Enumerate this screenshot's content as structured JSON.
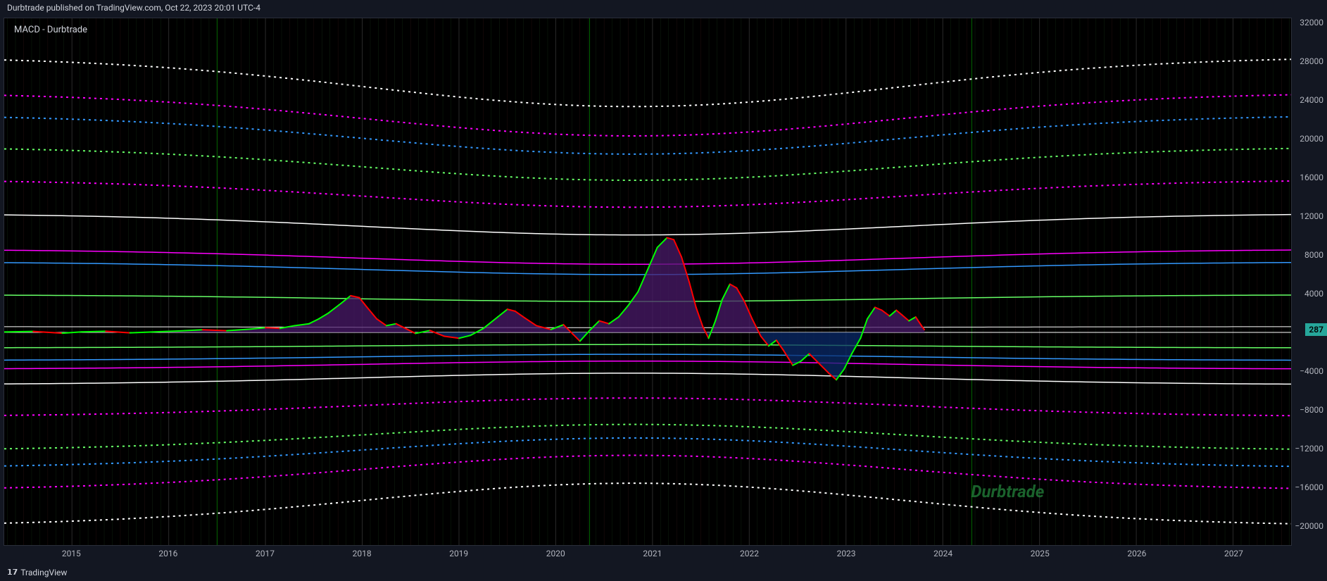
{
  "header": {
    "attribution": "Durbtrade published on TradingView.com, Oct 22, 2023 20:01 UTC-4"
  },
  "indicator": {
    "label": "MACD - Durbtrade"
  },
  "footer": {
    "brand": "TradingView"
  },
  "watermark": {
    "text": "Durbtrade",
    "color": "#268c3f"
  },
  "price_tag": {
    "value": "287",
    "bg": "#26a69a"
  },
  "chart": {
    "type": "macd-oscillator",
    "background": "#000000",
    "panel_border": "#2a2e39",
    "x": {
      "min": 2014.3,
      "max": 2027.6,
      "ticks": [
        2015,
        2016,
        2017,
        2018,
        2019,
        2020,
        2021,
        2022,
        2023,
        2024,
        2025,
        2026,
        2027
      ],
      "label_color": "#b2b5be"
    },
    "y": {
      "min": -22000,
      "max": 32500,
      "ticks": [
        32000,
        28000,
        24000,
        20000,
        16000,
        12000,
        8000,
        4000,
        0,
        -4000,
        -8000,
        -12000,
        -16000,
        -20000
      ],
      "label_color": "#b2b5be",
      "format": "signed"
    },
    "vgrid": {
      "years": [
        2015,
        2016,
        2017,
        2018,
        2019,
        2020,
        2021,
        2022,
        2023,
        2024,
        2025,
        2026,
        2027
      ],
      "halving_years": [
        2016.5,
        2020.35,
        2024.3
      ],
      "fine_color": "#1a3a1a",
      "fine_color2": "#3a1a1a",
      "year_color": "#555555",
      "halving_color": "#00aa00"
    },
    "bands": [
      {
        "level": 28500,
        "mirror": -20000,
        "color": "#ffffff",
        "dash": "3,5",
        "width": 2
      },
      {
        "level": 24800,
        "mirror": -16300,
        "color": "#ff00ff",
        "dash": "3,5",
        "width": 2
      },
      {
        "level": 22500,
        "mirror": -14000,
        "color": "#3399ff",
        "dash": "3,5",
        "width": 2
      },
      {
        "level": 19200,
        "mirror": -12200,
        "color": "#66ff66",
        "dash": "3,5",
        "width": 2
      },
      {
        "level": 15800,
        "mirror": -8700,
        "color": "#ff00ff",
        "dash": "3,5",
        "width": 2
      },
      {
        "level": 12300,
        "mirror": -5400,
        "color": "#ffffff",
        "dash": "none",
        "width": 1.5
      },
      {
        "level": 8600,
        "mirror": -3800,
        "color": "#ff00ff",
        "dash": "none",
        "width": 1.5
      },
      {
        "level": 7300,
        "mirror": -2900,
        "color": "#3399ff",
        "dash": "none",
        "width": 1.5
      },
      {
        "level": 3900,
        "mirror": -1600,
        "color": "#66ff66",
        "dash": "none",
        "width": 1.5
      },
      {
        "level": 600,
        "mirror": 0,
        "color": "#ffffff",
        "dash": "none",
        "width": 1
      }
    ],
    "band_curve": {
      "dip_center_year": 2020.8,
      "dip_depth_frac_pos": 0.18,
      "dip_depth_frac_neg": 0.22,
      "dip_width_years": 5.5
    },
    "macd": {
      "up_color": "#00ff00",
      "down_color": "#ff0000",
      "line_width": 2,
      "hist_pos_fill": "#4a1a6a",
      "hist_neg_fill": "#0a2a6a",
      "hist_opacity": 0.75,
      "points": [
        [
          2014.3,
          50
        ],
        [
          2014.6,
          100
        ],
        [
          2014.9,
          -80
        ],
        [
          2015.1,
          60
        ],
        [
          2015.35,
          120
        ],
        [
          2015.6,
          -40
        ],
        [
          2015.9,
          80
        ],
        [
          2016.1,
          150
        ],
        [
          2016.35,
          280
        ],
        [
          2016.6,
          180
        ],
        [
          2016.85,
          350
        ],
        [
          2017.0,
          500
        ],
        [
          2017.15,
          420
        ],
        [
          2017.3,
          700
        ],
        [
          2017.45,
          900
        ],
        [
          2017.55,
          1400
        ],
        [
          2017.65,
          2000
        ],
        [
          2017.78,
          3000
        ],
        [
          2017.88,
          3800
        ],
        [
          2017.97,
          3600
        ],
        [
          2018.05,
          2600
        ],
        [
          2018.15,
          1400
        ],
        [
          2018.25,
          700
        ],
        [
          2018.35,
          900
        ],
        [
          2018.45,
          400
        ],
        [
          2018.55,
          -100
        ],
        [
          2018.7,
          200
        ],
        [
          2018.85,
          -400
        ],
        [
          2019.0,
          -600
        ],
        [
          2019.12,
          -300
        ],
        [
          2019.25,
          400
        ],
        [
          2019.4,
          1600
        ],
        [
          2019.5,
          2400
        ],
        [
          2019.58,
          2200
        ],
        [
          2019.68,
          1500
        ],
        [
          2019.8,
          700
        ],
        [
          2019.95,
          300
        ],
        [
          2020.08,
          800
        ],
        [
          2020.18,
          -200
        ],
        [
          2020.25,
          -900
        ],
        [
          2020.35,
          200
        ],
        [
          2020.45,
          1200
        ],
        [
          2020.55,
          900
        ],
        [
          2020.65,
          1600
        ],
        [
          2020.75,
          2800
        ],
        [
          2020.85,
          4200
        ],
        [
          2020.95,
          6500
        ],
        [
          2021.05,
          8800
        ],
        [
          2021.15,
          9800
        ],
        [
          2021.22,
          9600
        ],
        [
          2021.3,
          7800
        ],
        [
          2021.38,
          5200
        ],
        [
          2021.45,
          2600
        ],
        [
          2021.52,
          600
        ],
        [
          2021.58,
          -600
        ],
        [
          2021.65,
          1200
        ],
        [
          2021.72,
          3400
        ],
        [
          2021.8,
          5000
        ],
        [
          2021.87,
          4600
        ],
        [
          2021.95,
          3200
        ],
        [
          2022.03,
          1400
        ],
        [
          2022.12,
          -400
        ],
        [
          2022.2,
          -1400
        ],
        [
          2022.28,
          -800
        ],
        [
          2022.35,
          -1800
        ],
        [
          2022.45,
          -3400
        ],
        [
          2022.53,
          -3000
        ],
        [
          2022.62,
          -2200
        ],
        [
          2022.72,
          -3200
        ],
        [
          2022.82,
          -4200
        ],
        [
          2022.9,
          -4900
        ],
        [
          2022.98,
          -3800
        ],
        [
          2023.06,
          -2200
        ],
        [
          2023.15,
          -600
        ],
        [
          2023.22,
          1400
        ],
        [
          2023.3,
          2600
        ],
        [
          2023.37,
          2300
        ],
        [
          2023.45,
          1700
        ],
        [
          2023.52,
          2300
        ],
        [
          2023.58,
          1800
        ],
        [
          2023.65,
          1200
        ],
        [
          2023.72,
          1600
        ],
        [
          2023.78,
          700
        ],
        [
          2023.81,
          287
        ]
      ]
    }
  }
}
